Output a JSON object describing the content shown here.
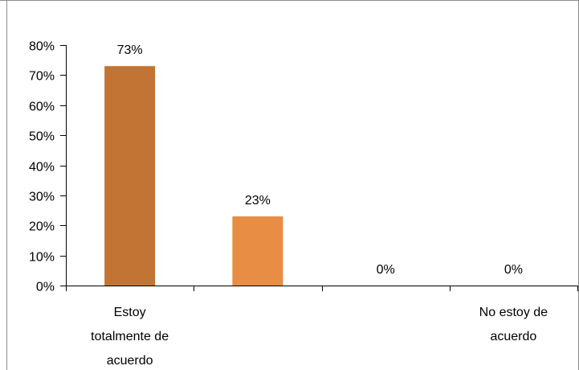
{
  "chart_data": {
    "type": "bar",
    "categories": [
      "Estoy totalmente de acuerdo",
      "",
      "",
      "No estoy de acuerdo"
    ],
    "category_label_lines": [
      [
        "Estoy",
        "totalmente de",
        "acuerdo"
      ],
      [],
      [],
      [
        "No estoy de",
        "acuerdo"
      ]
    ],
    "values": [
      73,
      23,
      0,
      0
    ],
    "data_labels": [
      "73%",
      "23%",
      "0%",
      "0%"
    ],
    "bar_colors": [
      "#C17434",
      "#E88D44",
      "#E88D44",
      "#E88D44"
    ],
    "ylim": [
      0,
      80
    ],
    "yticks": [
      0,
      10,
      20,
      30,
      40,
      50,
      60,
      70,
      80
    ],
    "ytick_labels": [
      "0%",
      "10%",
      "20%",
      "30%",
      "40%",
      "50%",
      "60%",
      "70%",
      "80%"
    ],
    "grid": false,
    "legend": "none",
    "title": "",
    "xlabel": "",
    "ylabel": ""
  }
}
